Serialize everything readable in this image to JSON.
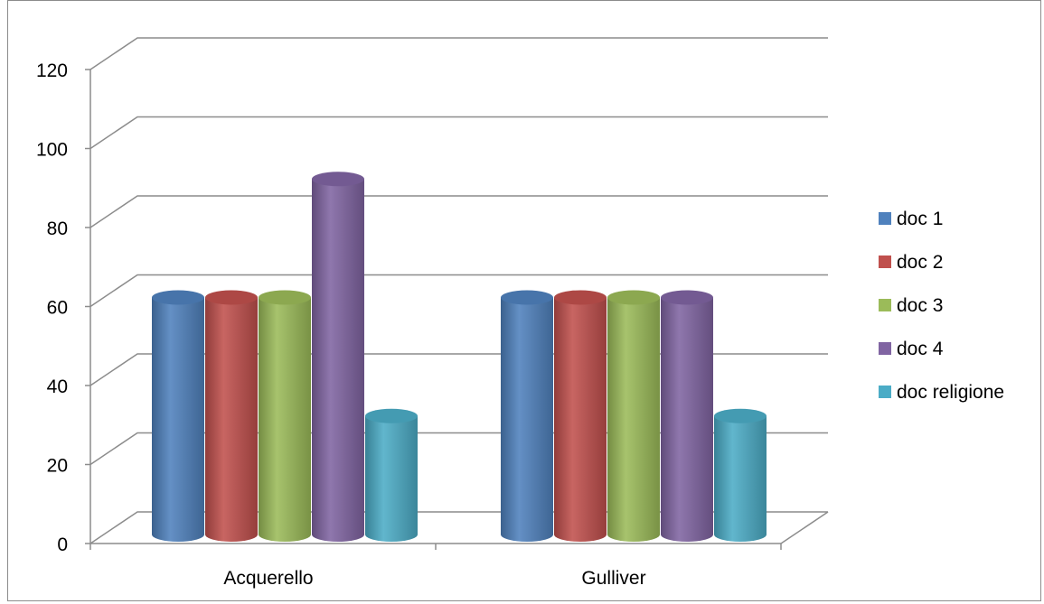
{
  "chart_data": {
    "type": "bar",
    "style": "3d-cylinder",
    "categories": [
      "Acquerello",
      "Gulliver"
    ],
    "series": [
      {
        "name": "doc 1",
        "color": "#4F81BD",
        "values": [
          60,
          60
        ]
      },
      {
        "name": "doc 2",
        "color": "#C0504D",
        "values": [
          60,
          60
        ]
      },
      {
        "name": "doc 3",
        "color": "#9BBB59",
        "values": [
          60,
          60
        ]
      },
      {
        "name": "doc 4",
        "color": "#8064A2",
        "values": [
          90,
          60
        ]
      },
      {
        "name": "doc religione",
        "color": "#4BACC6",
        "values": [
          30,
          30
        ]
      }
    ],
    "yticks": [
      "0",
      "20",
      "40",
      "60",
      "80",
      "100",
      "120"
    ],
    "ylim": [
      0,
      120
    ],
    "grid": true,
    "legend": "right"
  }
}
